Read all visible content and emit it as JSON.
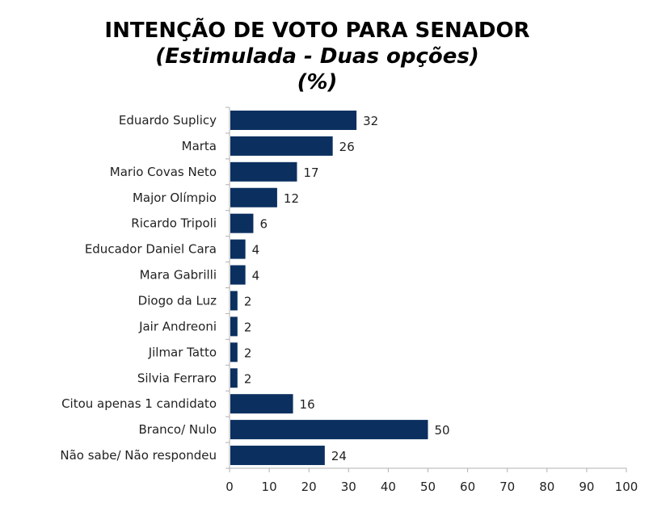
{
  "chart_data": {
    "type": "bar",
    "orientation": "horizontal",
    "title": "INTENÇÃO DE VOTO PARA SENADOR",
    "subtitle": "(Estimulada - Duas opções)",
    "unit_label": "(%)",
    "categories": [
      "Eduardo Suplicy",
      "Marta",
      "Mario Covas Neto",
      "Major Olímpio",
      "Ricardo Tripoli",
      "Educador Daniel Cara",
      "Mara Gabrilli",
      "Diogo da Luz",
      "Jair Andreoni",
      "Jilmar Tatto",
      "Silvia Ferraro",
      "Citou apenas 1 candidato",
      "Branco/ Nulo",
      "Não sabe/ Não respondeu"
    ],
    "values": [
      32,
      26,
      17,
      12,
      6,
      4,
      4,
      2,
      2,
      2,
      2,
      16,
      50,
      24
    ],
    "xlim": [
      0,
      100
    ],
    "xticks": [
      0,
      10,
      20,
      30,
      40,
      50,
      60,
      70,
      80,
      90,
      100
    ],
    "data_labels": true,
    "grid": false,
    "bar_color": "#0b3060"
  }
}
